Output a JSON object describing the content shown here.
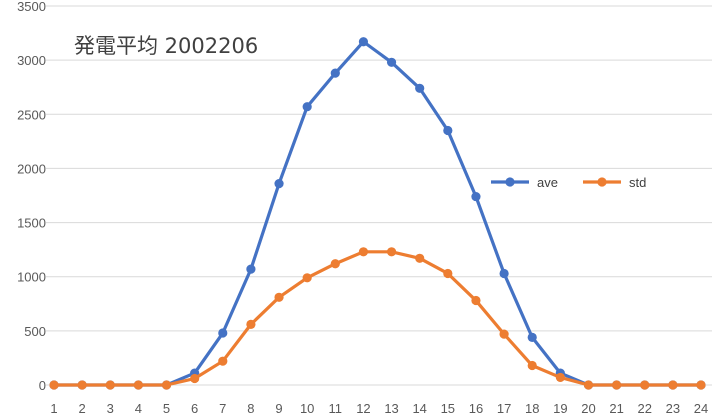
{
  "chart_data": {
    "type": "line",
    "title": "発電平均 2002206",
    "xlabel": "",
    "ylabel": "",
    "x": [
      1,
      2,
      3,
      4,
      5,
      6,
      7,
      8,
      9,
      10,
      11,
      12,
      13,
      14,
      15,
      16,
      17,
      18,
      19,
      20,
      21,
      22,
      23,
      24
    ],
    "ylim": [
      0,
      3500
    ],
    "yticks": [
      0,
      500,
      1000,
      1500,
      2000,
      2500,
      3000,
      3500
    ],
    "grid": true,
    "legend_position": "right",
    "series": [
      {
        "name": "ave",
        "color": "#4472C4",
        "values": [
          0,
          0,
          0,
          0,
          0,
          110,
          480,
          1070,
          1860,
          2570,
          2880,
          3170,
          2980,
          2740,
          2350,
          1740,
          1030,
          440,
          110,
          0,
          0,
          0,
          0,
          0
        ]
      },
      {
        "name": "std",
        "color": "#ED7D31",
        "values": [
          0,
          0,
          0,
          0,
          0,
          60,
          220,
          560,
          810,
          990,
          1120,
          1230,
          1230,
          1170,
          1030,
          780,
          470,
          180,
          70,
          0,
          0,
          0,
          0,
          0
        ]
      }
    ]
  }
}
